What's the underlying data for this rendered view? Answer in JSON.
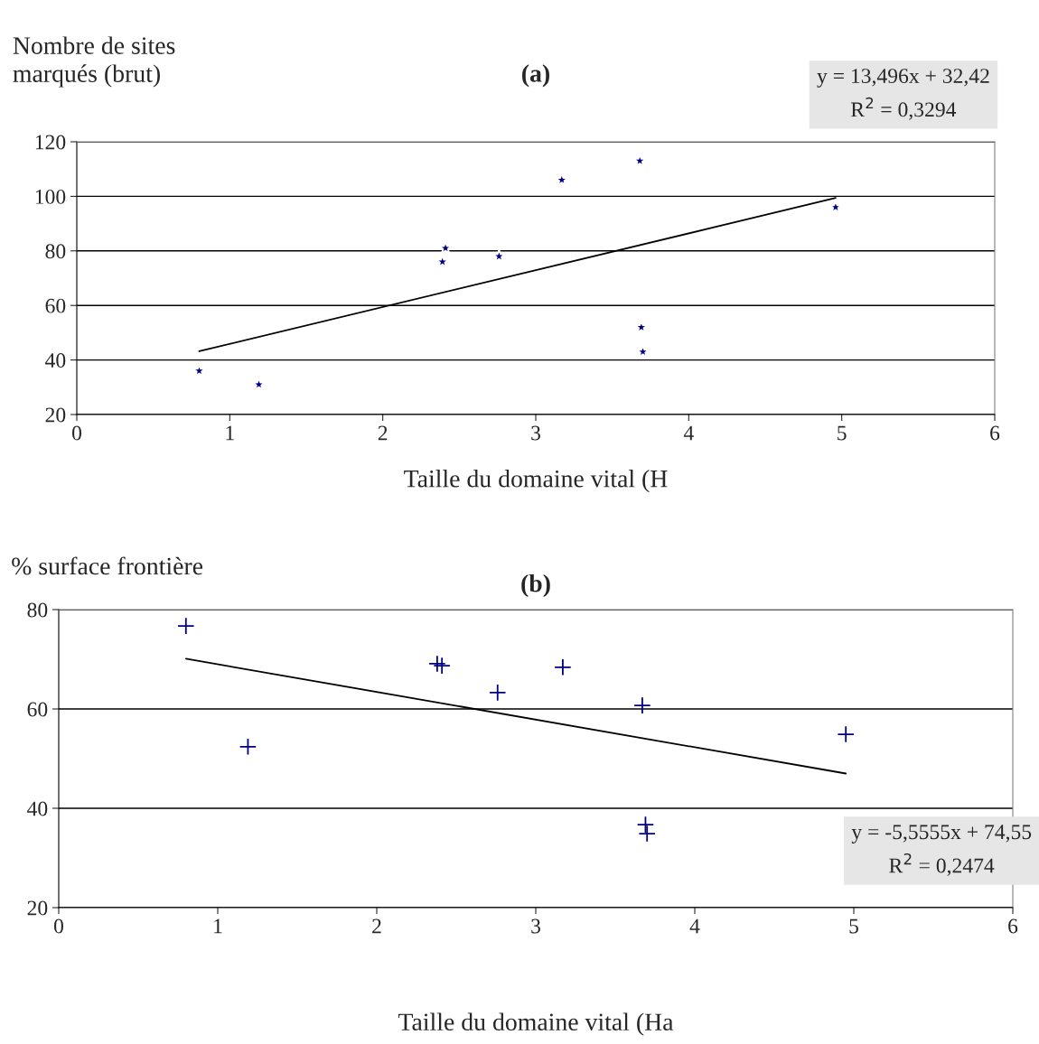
{
  "chart_data": [
    {
      "type": "scatter",
      "title": "(a)",
      "ylabel": "Nombre de sites\nmarqués (brut)",
      "xlabel": "Taille du domaine vital (H",
      "xlim": [
        0,
        6
      ],
      "xticks": [
        0,
        1,
        2,
        3,
        4,
        5,
        6
      ],
      "ylim": [
        20,
        120
      ],
      "yticks": [
        20,
        40,
        60,
        80,
        100,
        120
      ],
      "grid": "y",
      "legend": false,
      "series": [
        {
          "color": "#000080",
          "marker": "star",
          "x": [
            0.8,
            1.19,
            2.39,
            2.41,
            2.76,
            3.17,
            3.68,
            3.69,
            3.7,
            4.96
          ],
          "values": [
            36,
            31,
            76,
            81,
            78,
            106,
            113,
            52,
            43,
            96
          ]
        },
        {
          "type": "line",
          "color": "#000000",
          "marker": "none",
          "line_style": "solid",
          "x": [
            0.8,
            4.96
          ],
          "values": [
            43.2,
            99.4
          ]
        }
      ],
      "annotations": [
        "y = 13,496x + 32,42",
        "R$^{2}$ = 0,3294"
      ]
    },
    {
      "type": "scatter",
      "title": "(b)",
      "ylabel": "% surface frontière",
      "xlabel": "Taille du domaine vital (Ha",
      "xlim": [
        0,
        6
      ],
      "xticks": [
        0,
        1,
        2,
        3,
        4,
        5,
        6
      ],
      "ylim": [
        20,
        80
      ],
      "yticks": [
        20,
        40,
        60,
        80
      ],
      "grid": "y",
      "legend": false,
      "series": [
        {
          "color": "#000080",
          "marker": "cross",
          "x": [
            0.8,
            1.19,
            2.38,
            2.41,
            2.76,
            3.17,
            3.67,
            3.69,
            3.7,
            4.95
          ],
          "values": [
            76.7,
            52.4,
            69.1,
            68.7,
            63.3,
            68.4,
            60.7,
            36.7,
            34.9,
            54.9
          ]
        },
        {
          "type": "line",
          "color": "#000000",
          "marker": "none",
          "line_style": "solid",
          "x": [
            0.8,
            4.95
          ],
          "values": [
            70.1,
            47.0
          ]
        }
      ],
      "annotations": [
        "y = -5,5555x + 74,55",
        "R$^{2}$ = 0,2474"
      ]
    }
  ]
}
